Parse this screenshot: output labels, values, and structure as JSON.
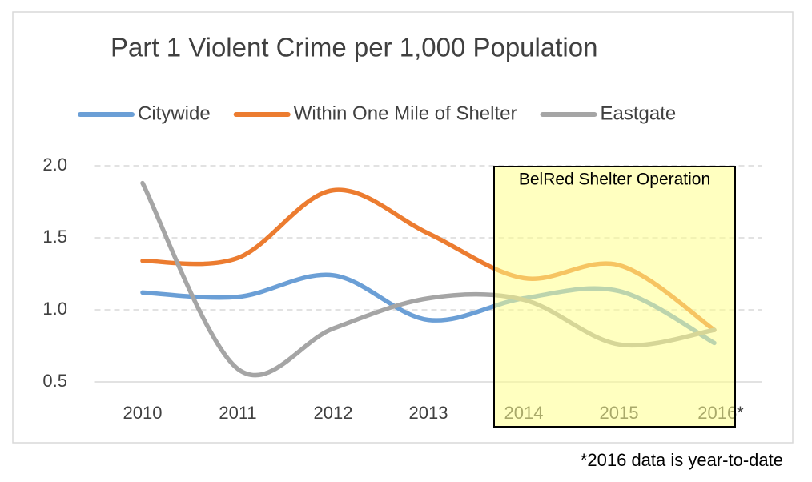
{
  "chart_data": {
    "type": "line",
    "title": "Part 1 Violent Crime per 1,000 Population",
    "categories": [
      "2010",
      "2011",
      "2012",
      "2013",
      "2014",
      "2015",
      "2016*"
    ],
    "series": [
      {
        "name": "Citywide",
        "color": "#6b9fd6",
        "values": [
          1.12,
          1.09,
          1.24,
          0.93,
          1.08,
          1.13,
          0.77
        ]
      },
      {
        "name": "Within One Mile of Shelter",
        "color": "#ec7c30",
        "values": [
          1.34,
          1.36,
          1.83,
          1.53,
          1.22,
          1.31,
          0.86
        ]
      },
      {
        "name": "Eastgate",
        "color": "#a5a5a5",
        "values": [
          1.88,
          0.59,
          0.87,
          1.08,
          1.07,
          0.76,
          0.86
        ]
      }
    ],
    "ylim": [
      0.5,
      2.0
    ],
    "yticks": [
      {
        "value": 0.5,
        "label": "0.5"
      },
      {
        "value": 1,
        "label": "1.0"
      },
      {
        "value": 1.5,
        "label": "1.5"
      },
      {
        "value": 2,
        "label": "2.0"
      }
    ],
    "grid": true,
    "legend": "top",
    "smooth": true,
    "annotation": {
      "text": "BelRed Shelter Operation",
      "from": "2014",
      "to": "2016*"
    },
    "footnote": "*2016 data is year-to-date"
  }
}
